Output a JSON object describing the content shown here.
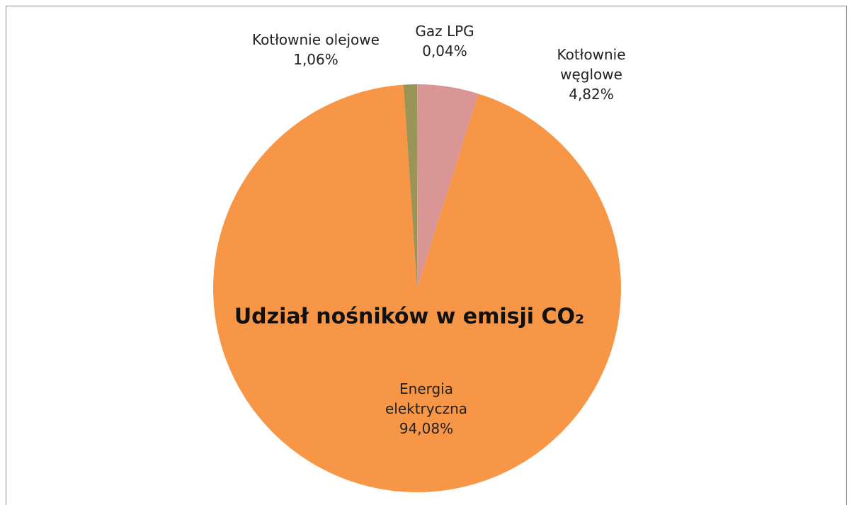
{
  "chart_data": {
    "type": "pie",
    "title": "Udział nośników w emisji CO₂",
    "categories": [
      "Gaz LPG",
      "Kotłownie węglowe",
      "Energia elektryczna",
      "Kotłownie olejowe"
    ],
    "values": [
      0.04,
      4.82,
      94.08,
      1.06
    ],
    "value_labels": [
      "0,04%",
      "4,82%",
      "94,08%",
      "1,06%"
    ],
    "colors": [
      "#8fa8d0",
      "#d99694",
      "#f79646",
      "#9a9457"
    ]
  }
}
